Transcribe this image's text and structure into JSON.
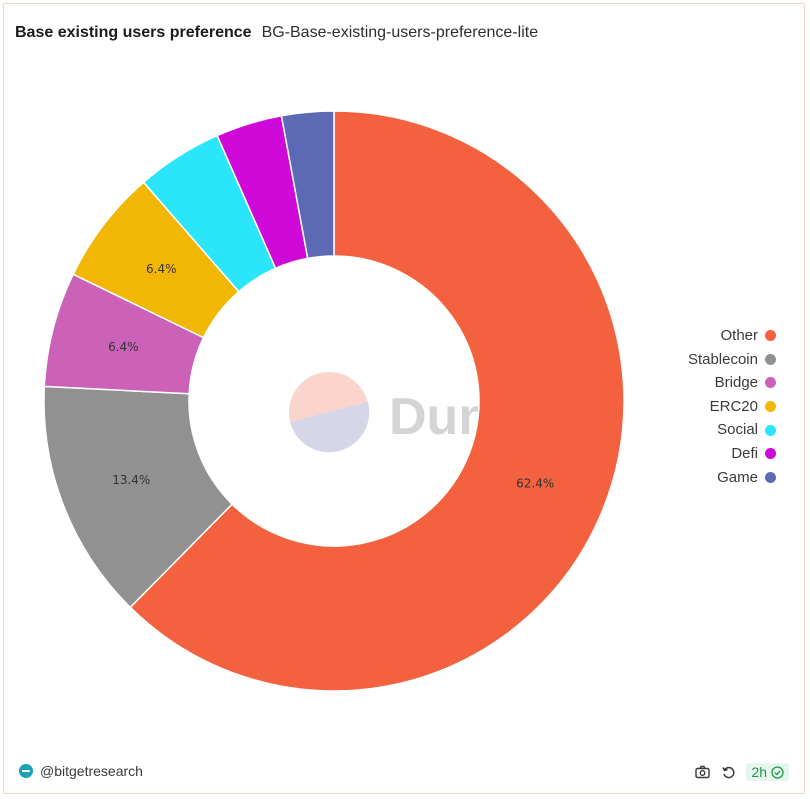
{
  "header": {
    "title": "Base existing users preference",
    "subtitle": "BG-Base-existing-users-preference-lite"
  },
  "watermark": {
    "text": "Dune"
  },
  "chart_data": {
    "type": "pie",
    "donut": true,
    "categories": [
      "Other",
      "Stablecoin",
      "Bridge",
      "ERC20",
      "Social",
      "Defi",
      "Game"
    ],
    "values": [
      62.4,
      13.4,
      6.4,
      6.4,
      4.8,
      3.7,
      2.9
    ],
    "data_labels": [
      "62.4%",
      "13.4%",
      "6.4%",
      "6.4%",
      "",
      "",
      ""
    ],
    "colors": [
      "#f4613f",
      "#919191",
      "#cc62b8",
      "#f2b705",
      "#2be5fb",
      "#cf0ad9",
      "#5c6ab6"
    ],
    "legend_position": "right"
  },
  "footer": {
    "author": "@bitgetresearch",
    "age": "2h",
    "icons": [
      "camera-icon",
      "refresh-icon",
      "check-circle-icon"
    ]
  }
}
